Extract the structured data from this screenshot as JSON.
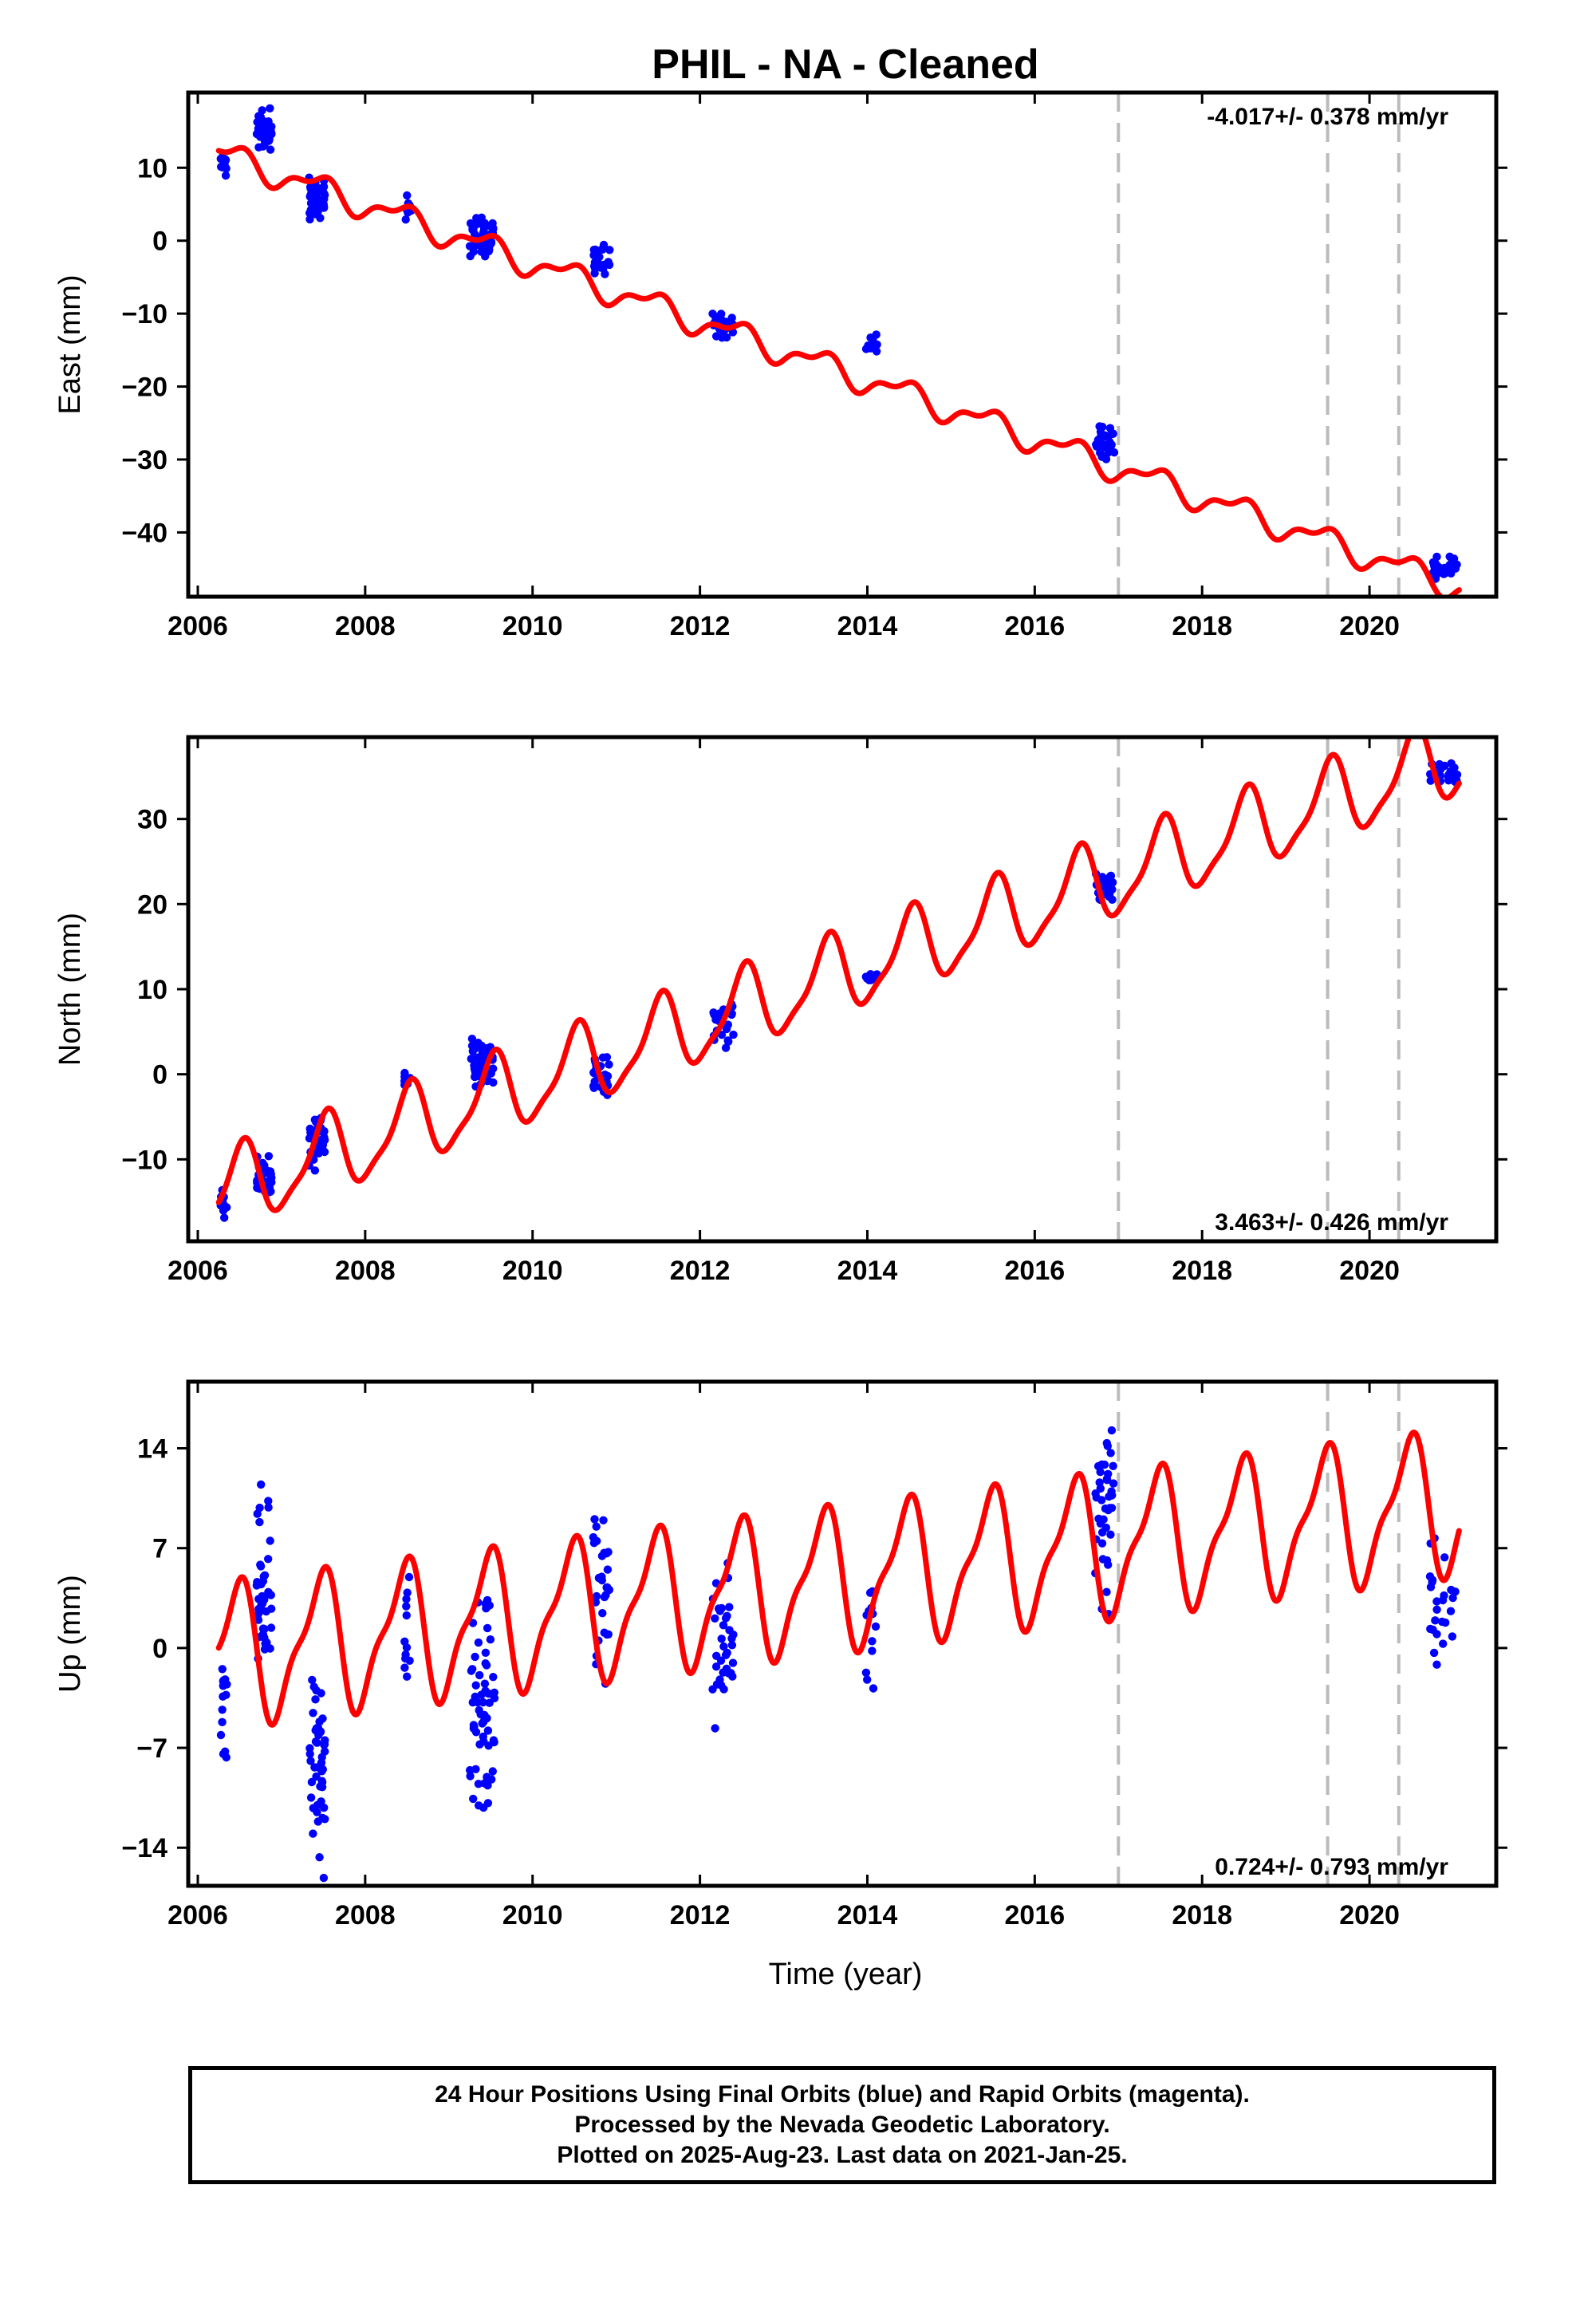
{
  "title": "PHIL  - NA - Cleaned",
  "xlabel": "Time (year)",
  "footer": {
    "line1": "24 Hour Positions Using Final Orbits (blue) and Rapid Orbits (magenta).",
    "line2": "Processed by the Nevada Geodetic Laboratory.",
    "line3": "Plotted on 2025-Aug-23. Last data on 2021-Jan-25."
  },
  "colors": {
    "data": "#0000ff",
    "model": "#ff0000",
    "events": "#bbbbbb",
    "frame": "#000000"
  },
  "chart_data": [
    {
      "type": "scatter",
      "component": "east",
      "ylabel": "East (mm)",
      "xlim": [
        2006.0,
        2021.4
      ],
      "ylim": [
        -47.5,
        19
      ],
      "xticks": [
        2006,
        2008,
        2010,
        2012,
        2014,
        2016,
        2018,
        2020
      ],
      "yticks": [
        10,
        0,
        -10,
        -20,
        -30,
        -40
      ],
      "event_lines": [
        2017.0,
        2019.5,
        2020.35
      ],
      "rate_label": "-4.017+/- 0.378 mm/yr",
      "rate_position": "top-right",
      "grid": false,
      "model": {
        "intercept_year": 2006.25,
        "intercept": 12.0,
        "rate": -4.017,
        "ampA": 1.6,
        "phiA": -1.2,
        "ampS": 0.8,
        "phiS": 0.3
      },
      "clusters": [
        {
          "x0": 2006.27,
          "x1": 2006.35,
          "y": 10.5,
          "spread": 2.0,
          "n": 10
        },
        {
          "x0": 2006.7,
          "x1": 2006.88,
          "y": 15.0,
          "spread": 2.8,
          "n": 40
        },
        {
          "x0": 2007.33,
          "x1": 2007.52,
          "y": 6.0,
          "spread": 3.0,
          "n": 45
        },
        {
          "x0": 2008.47,
          "x1": 2008.55,
          "y": 4.2,
          "spread": 2.0,
          "n": 10
        },
        {
          "x0": 2009.25,
          "x1": 2009.55,
          "y": 0.5,
          "spread": 2.6,
          "n": 50
        },
        {
          "x0": 2010.72,
          "x1": 2010.92,
          "y": -3.0,
          "spread": 2.0,
          "n": 25
        },
        {
          "x0": 2012.15,
          "x1": 2012.4,
          "y": -11.5,
          "spread": 2.2,
          "n": 25
        },
        {
          "x0": 2013.98,
          "x1": 2014.12,
          "y": -14.0,
          "spread": 1.5,
          "n": 12
        },
        {
          "x0": 2016.72,
          "x1": 2016.95,
          "y": -27.5,
          "spread": 2.2,
          "n": 30
        },
        {
          "x0": 2020.72,
          "x1": 2021.05,
          "y": -44.5,
          "spread": 1.4,
          "n": 28
        }
      ]
    },
    {
      "type": "scatter",
      "component": "north",
      "ylabel": "North (mm)",
      "xlim": [
        2006.0,
        2021.4
      ],
      "ylim": [
        -18.5,
        38.5
      ],
      "xticks": [
        2006,
        2008,
        2010,
        2012,
        2014,
        2016,
        2018,
        2020
      ],
      "yticks": [
        30,
        20,
        10,
        0,
        -10
      ],
      "event_lines": [
        2017.0,
        2019.5,
        2020.35
      ],
      "rate_label": "3.463+/- 0.426 mm/yr",
      "rate_position": "bottom-right",
      "grid": false,
      "model": {
        "intercept_year": 2006.25,
        "intercept": -14.0,
        "rate": 3.463,
        "ampA": 4.5,
        "phiA": -1.7,
        "ampS": 1.2,
        "phiS": 0.4
      },
      "clusters": [
        {
          "x0": 2006.27,
          "x1": 2006.35,
          "y": -15.5,
          "spread": 2.0,
          "n": 10
        },
        {
          "x0": 2006.7,
          "x1": 2006.88,
          "y": -12.0,
          "spread": 2.6,
          "n": 40
        },
        {
          "x0": 2007.33,
          "x1": 2007.52,
          "y": -8.0,
          "spread": 3.0,
          "n": 45
        },
        {
          "x0": 2008.47,
          "x1": 2008.55,
          "y": -0.8,
          "spread": 1.2,
          "n": 10
        },
        {
          "x0": 2009.25,
          "x1": 2009.55,
          "y": 1.0,
          "spread": 3.0,
          "n": 50
        },
        {
          "x0": 2010.72,
          "x1": 2010.92,
          "y": 0.0,
          "spread": 2.2,
          "n": 25
        },
        {
          "x0": 2012.15,
          "x1": 2012.4,
          "y": 6.0,
          "spread": 2.8,
          "n": 25
        },
        {
          "x0": 2013.98,
          "x1": 2014.12,
          "y": 11.2,
          "spread": 0.8,
          "n": 12
        },
        {
          "x0": 2016.72,
          "x1": 2016.95,
          "y": 22.0,
          "spread": 1.8,
          "n": 30
        },
        {
          "x0": 2020.72,
          "x1": 2021.05,
          "y": 35.5,
          "spread": 1.6,
          "n": 28
        }
      ]
    },
    {
      "type": "scatter",
      "component": "up",
      "ylabel": "Up (mm)",
      "xlim": [
        2006.0,
        2021.4
      ],
      "ylim": [
        -16,
        18
      ],
      "xticks": [
        2006,
        2008,
        2010,
        2012,
        2014,
        2016,
        2018,
        2020
      ],
      "yticks": [
        14,
        7,
        0,
        -7,
        -14
      ],
      "event_lines": [
        2017.0,
        2019.5,
        2020.35
      ],
      "rate_label": "0.724+/- 0.793 mm/yr",
      "rate_position": "bottom-right",
      "grid": false,
      "model": {
        "intercept_year": 2006.25,
        "intercept": -0.5,
        "rate": 0.724,
        "ampA": 4.6,
        "phiA": -1.3,
        "ampS": 1.5,
        "phiS": 0.5
      },
      "clusters": [
        {
          "x0": 2006.27,
          "x1": 2006.35,
          "y": -4.0,
          "spread": 6.0,
          "n": 14
        },
        {
          "x0": 2006.7,
          "x1": 2006.88,
          "y": 4.0,
          "spread": 6.5,
          "n": 45
        },
        {
          "x0": 2007.33,
          "x1": 2007.52,
          "y": -9.0,
          "spread": 6.0,
          "n": 50
        },
        {
          "x0": 2008.47,
          "x1": 2008.55,
          "y": 1.0,
          "spread": 4.5,
          "n": 12
        },
        {
          "x0": 2009.25,
          "x1": 2009.55,
          "y": -4.0,
          "spread": 7.0,
          "n": 60
        },
        {
          "x0": 2010.72,
          "x1": 2010.92,
          "y": 4.0,
          "spread": 5.5,
          "n": 30
        },
        {
          "x0": 2012.15,
          "x1": 2012.4,
          "y": 1.0,
          "spread": 7.0,
          "n": 35
        },
        {
          "x0": 2013.98,
          "x1": 2014.12,
          "y": 0.0,
          "spread": 5.0,
          "n": 12
        },
        {
          "x0": 2016.72,
          "x1": 2016.95,
          "y": 10.0,
          "spread": 6.0,
          "n": 40
        },
        {
          "x0": 2020.72,
          "x1": 2021.05,
          "y": 3.0,
          "spread": 5.5,
          "n": 25
        }
      ]
    }
  ]
}
